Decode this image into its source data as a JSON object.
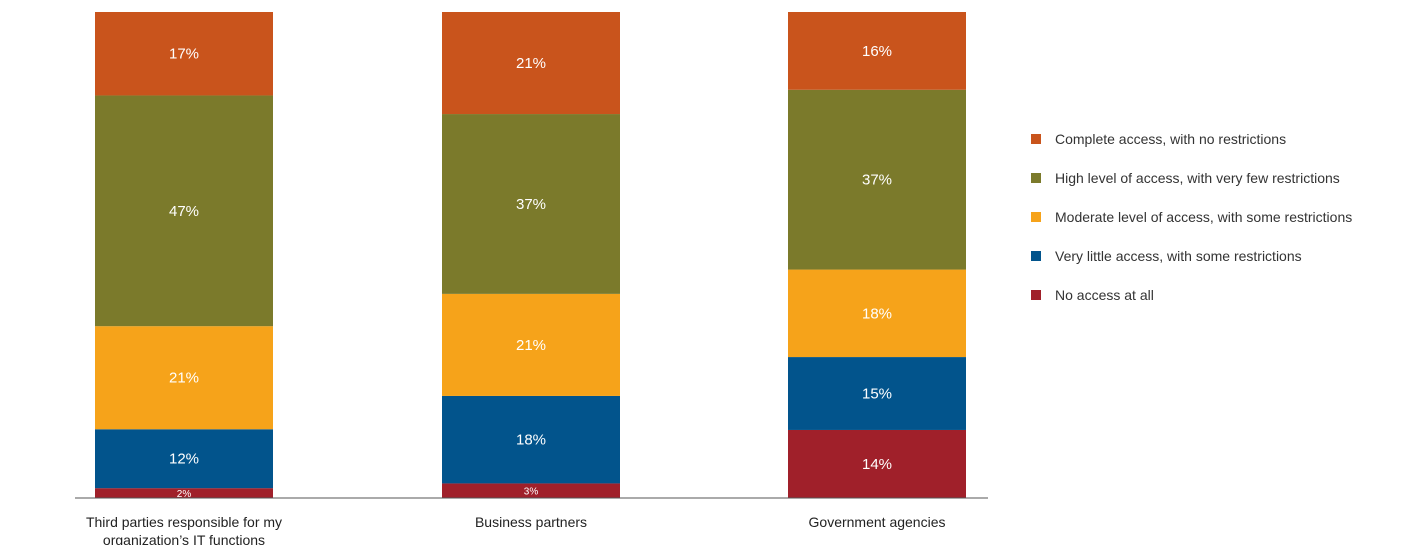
{
  "chart_data": {
    "type": "bar",
    "stacked": true,
    "categories": [
      "Third parties responsible for my organization’s IT functions",
      "Business partners",
      "Government agencies"
    ],
    "series": [
      {
        "name": "No access at all",
        "color": "#a0202a",
        "values": [
          2,
          3,
          14
        ]
      },
      {
        "name": "Very little access, with some restrictions",
        "color": "#02548c",
        "values": [
          12,
          18,
          15
        ]
      },
      {
        "name": "Moderate level of access, with some restrictions",
        "color": "#f6a31a",
        "values": [
          21,
          21,
          18
        ]
      },
      {
        "name": "High level of access, with very few restrictions",
        "color": "#7b7a2b",
        "values": [
          47,
          37,
          37
        ]
      },
      {
        "name": "Complete access, with no restrictions",
        "color": "#c9541c",
        "values": [
          17,
          21,
          16
        ]
      }
    ],
    "legend_order": [
      4,
      3,
      2,
      1,
      0
    ],
    "legend_position": "right",
    "ylim": [
      0,
      100
    ],
    "grid": false
  }
}
